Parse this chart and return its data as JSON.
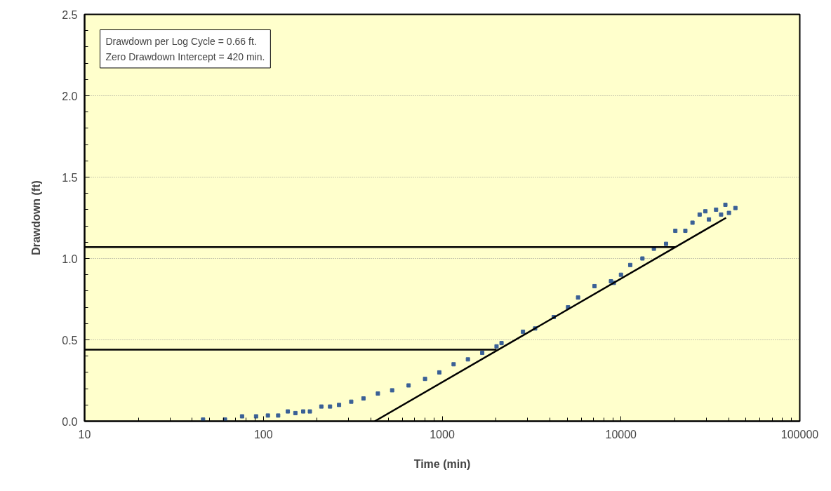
{
  "chart_data": {
    "type": "scatter",
    "xlabel": "Time (min)",
    "ylabel": "Drawdown (ft)",
    "log": "x",
    "grid": "y",
    "marker": "square",
    "xlim": [
      10,
      100000
    ],
    "xticks": [
      10,
      100,
      1000,
      10000,
      100000
    ],
    "ylim": [
      0,
      2.5
    ],
    "yticks": [
      {
        "value": 0,
        "label": "0.0"
      },
      {
        "value": 0.5,
        "label": "0.5"
      },
      {
        "value": 1,
        "label": "1.0"
      },
      {
        "value": 1.5,
        "label": "1.5"
      },
      {
        "value": 2,
        "label": "2.0"
      },
      {
        "value": 2.5,
        "label": "2.5"
      }
    ],
    "annotations": [
      "Drawdown per Log Cycle = 0.66 ft.\nZero Drawdown Intercept = 420 min."
    ],
    "series": [
      {
        "color": "#3a6096",
        "x": [
          46,
          61,
          76,
          91,
          106,
          121,
          137,
          151,
          167,
          182,
          211,
          236,
          265,
          310,
          363,
          437,
          525,
          649,
          802,
          964,
          1159,
          1393,
          1675,
          2014,
          2148,
          2831,
          3311,
          4207,
          5058,
          5754,
          7112,
          8790,
          9120,
          10000,
          11270,
          13180,
          15280,
          17870,
          20140,
          22910,
          25120,
          27540,
          29650,
          31050,
          34040,
          36310,
          38370,
          40180,
          43650
        ],
        "values": [
          0.01,
          0.01,
          0.03,
          0.03,
          0.035,
          0.035,
          0.06,
          0.05,
          0.06,
          0.06,
          0.09,
          0.09,
          0.1,
          0.12,
          0.14,
          0.17,
          0.19,
          0.22,
          0.26,
          0.3,
          0.35,
          0.38,
          0.42,
          0.46,
          0.48,
          0.55,
          0.57,
          0.64,
          0.7,
          0.76,
          0.83,
          0.86,
          0.85,
          0.9,
          0.96,
          1.0,
          1.06,
          1.09,
          1.17,
          1.17,
          1.22,
          1.27,
          1.29,
          1.24,
          1.3,
          1.27,
          1.33,
          1.28,
          1.31
        ]
      },
      {
        "type": "line",
        "marker": "none",
        "color": "#000000",
        "x": [
          420,
          38700
        ],
        "values": [
          0,
          1.25
        ]
      },
      {
        "type": "line",
        "marker": "none",
        "color": "#000000",
        "x": [
          10,
          20140
        ],
        "values": [
          1.07,
          1.07
        ]
      },
      {
        "type": "line",
        "marker": "none",
        "color": "#000000",
        "x": [
          10,
          2014
        ],
        "values": [
          0.44,
          0.44
        ]
      }
    ]
  }
}
